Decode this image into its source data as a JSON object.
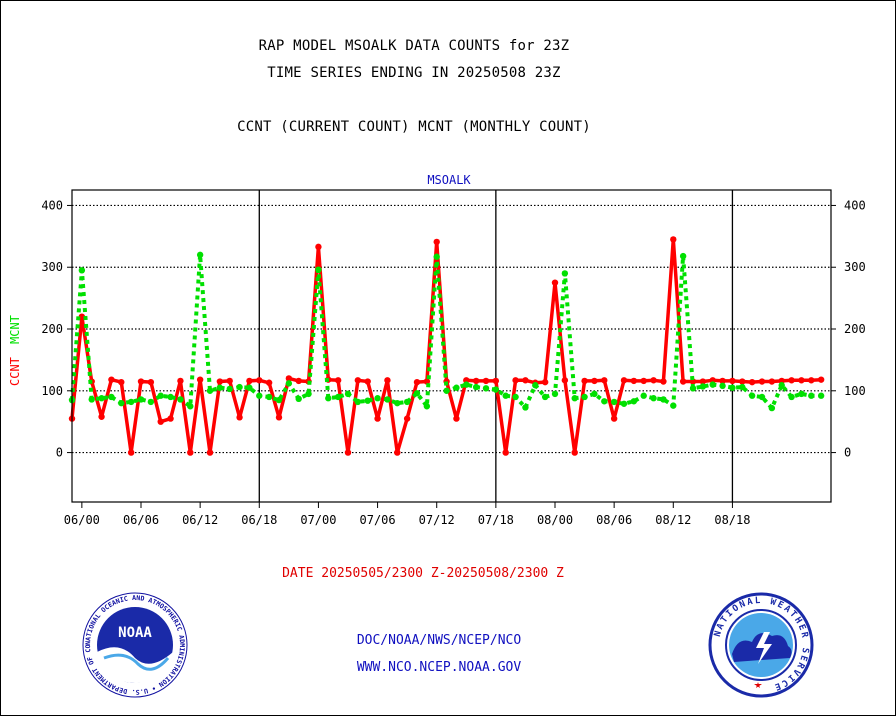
{
  "header": {
    "title_line1": "RAP MODEL MSOALK DATA COUNTS for 23Z",
    "title_line2": "TIME SERIES ENDING IN 20250508 23Z",
    "subtitle": "CCNT (CURRENT COUNT) MCNT (MONTHLY COUNT)"
  },
  "footer": {
    "date_range": "DATE 20250505/2300 Z-20250508/2300 Z",
    "org_path": "DOC/NOAA/NWS/NCEP/NCO",
    "website": "WWW.NCO.NCEP.NOAA.GOV"
  },
  "logos": {
    "noaa": "NOAA",
    "noaa_ring_text": "NATIONAL OCEANIC AND ATMOSPHERIC ADMINISTRATION • U.S. DEPARTMENT OF COMMERCE •",
    "nws_ring_text": "NATIONAL WEATHER SERVICE"
  },
  "colors": {
    "ccnt": "#ff0000",
    "mcnt": "#00e000",
    "axis_title": "#1010c0",
    "grid": "#000000"
  },
  "chart_data": {
    "type": "line",
    "title": "MSOALK",
    "ylabel_parts": [
      {
        "text": "CCNT",
        "color": "#ff0000"
      },
      {
        "text": "MCNT",
        "color": "#00e000"
      }
    ],
    "ylim": [
      -80,
      425
    ],
    "yticks": [
      0,
      100,
      200,
      300,
      400
    ],
    "xlim": [
      -1,
      76
    ],
    "xticks": [
      {
        "x": 0,
        "label": "06/00"
      },
      {
        "x": 6,
        "label": "06/06"
      },
      {
        "x": 12,
        "label": "06/12"
      },
      {
        "x": 18,
        "label": "06/18"
      },
      {
        "x": 24,
        "label": "07/00"
      },
      {
        "x": 30,
        "label": "07/06"
      },
      {
        "x": 36,
        "label": "07/12"
      },
      {
        "x": 42,
        "label": "07/18"
      },
      {
        "x": 48,
        "label": "08/00"
      },
      {
        "x": 54,
        "label": "08/06"
      },
      {
        "x": 60,
        "label": "08/12"
      },
      {
        "x": 66,
        "label": "08/18"
      }
    ],
    "day_dividers": [
      18,
      42,
      66
    ],
    "grid": "horizontal dotted",
    "series": [
      {
        "name": "CCNT",
        "style": "solid",
        "x": [
          -1,
          0,
          1,
          2,
          3,
          4,
          5,
          6,
          7,
          8,
          9,
          10,
          11,
          12,
          13,
          14,
          15,
          16,
          17,
          18,
          19,
          20,
          21,
          22,
          23,
          24,
          25,
          26,
          27,
          28,
          29,
          30,
          31,
          32,
          33,
          34,
          35,
          36,
          37,
          38,
          39,
          40,
          41,
          42,
          43,
          44,
          45,
          46,
          47,
          48,
          49,
          50,
          51,
          52,
          53,
          54,
          55,
          56,
          57,
          58,
          59,
          60,
          61,
          62,
          63,
          64,
          65,
          66,
          67,
          68,
          69,
          70,
          71,
          72,
          73,
          74,
          75
        ],
        "values": [
          55,
          220,
          115,
          58,
          118,
          114,
          0,
          115,
          114,
          50,
          55,
          116,
          0,
          118,
          0,
          115,
          116,
          57,
          116,
          117,
          113,
          57,
          120,
          116,
          115,
          333,
          118,
          117,
          0,
          117,
          115,
          55,
          117,
          0,
          55,
          114,
          115,
          341,
          115,
          55,
          117,
          116,
          116,
          116,
          0,
          117,
          117,
          113,
          114,
          275,
          117,
          0,
          116,
          116,
          117,
          55,
          117,
          116,
          116,
          117,
          115,
          345,
          115,
          115,
          115,
          117,
          116,
          116,
          115,
          114,
          115,
          115,
          116,
          117,
          117,
          117,
          118
        ]
      },
      {
        "name": "MCNT",
        "style": "dotted",
        "x": [
          -1,
          0,
          1,
          2,
          3,
          4,
          5,
          6,
          7,
          8,
          9,
          10,
          11,
          12,
          13,
          14,
          15,
          16,
          17,
          18,
          19,
          20,
          21,
          22,
          23,
          24,
          25,
          26,
          27,
          28,
          29,
          30,
          31,
          32,
          33,
          34,
          35,
          36,
          37,
          38,
          39,
          40,
          41,
          42,
          43,
          44,
          45,
          46,
          47,
          48,
          49,
          50,
          51,
          52,
          53,
          54,
          55,
          56,
          57,
          58,
          59,
          60,
          61,
          62,
          63,
          64,
          65,
          66,
          67,
          68,
          69,
          70,
          71,
          72,
          73,
          74,
          75
        ],
        "values": [
          85,
          295,
          86,
          88,
          90,
          80,
          82,
          86,
          82,
          92,
          90,
          86,
          75,
          320,
          100,
          105,
          103,
          106,
          105,
          92,
          90,
          85,
          112,
          87,
          95,
          296,
          88,
          90,
          95,
          82,
          84,
          88,
          86,
          80,
          82,
          96,
          75,
          317,
          100,
          105,
          110,
          106,
          104,
          102,
          92,
          90,
          73,
          109,
          90,
          95,
          290,
          88,
          90,
          95,
          83,
          82,
          79,
          83,
          92,
          88,
          86,
          76,
          318,
          104,
          107,
          110,
          108,
          105,
          106,
          92,
          90,
          72,
          109,
          90,
          95,
          92,
          92
        ]
      }
    ]
  }
}
